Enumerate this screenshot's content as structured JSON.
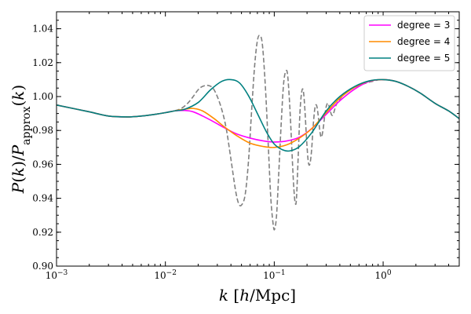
{
  "chart_data": {
    "type": "line",
    "xscale": "log",
    "xlim": [
      0.001,
      5.0
    ],
    "ylim": [
      0.9,
      1.05
    ],
    "xlabel": "k [h/Mpc]",
    "ylabel": "P(k)/P_approx(k)",
    "xticks": [
      {
        "value": 0.001,
        "base": "10",
        "exp": "−3"
      },
      {
        "value": 0.01,
        "base": "10",
        "exp": "−2"
      },
      {
        "value": 0.1,
        "base": "10",
        "exp": "−1"
      },
      {
        "value": 1.0,
        "base": "10",
        "exp": "0"
      }
    ],
    "yticks": [
      {
        "value": 0.9,
        "label": "0.90"
      },
      {
        "value": 0.92,
        "label": "0.92"
      },
      {
        "value": 0.94,
        "label": "0.94"
      },
      {
        "value": 0.96,
        "label": "0.96"
      },
      {
        "value": 0.98,
        "label": "0.98"
      },
      {
        "value": 1.0,
        "label": "1.00"
      },
      {
        "value": 1.02,
        "label": "1.02"
      },
      {
        "value": 1.04,
        "label": "1.04"
      }
    ],
    "legend_position": "top-right",
    "series": [
      {
        "name": "data",
        "label": "",
        "color": "#808080",
        "dashed": true,
        "points": [
          [
            0.001,
            0.995
          ],
          [
            0.002,
            0.991
          ],
          [
            0.003,
            0.9885
          ],
          [
            0.0045,
            0.988
          ],
          [
            0.006,
            0.9885
          ],
          [
            0.008,
            0.9895
          ],
          [
            0.01,
            0.9905
          ],
          [
            0.012,
            0.9915
          ],
          [
            0.014,
            0.993
          ],
          [
            0.016,
            0.996
          ],
          [
            0.018,
            1.0
          ],
          [
            0.02,
            1.004
          ],
          [
            0.022,
            1.006
          ],
          [
            0.025,
            1.0065
          ],
          [
            0.028,
            1.004
          ],
          [
            0.032,
            0.995
          ],
          [
            0.036,
            0.982
          ],
          [
            0.04,
            0.963
          ],
          [
            0.044,
            0.945
          ],
          [
            0.047,
            0.937
          ],
          [
            0.05,
            0.936
          ],
          [
            0.054,
            0.942
          ],
          [
            0.058,
            0.962
          ],
          [
            0.062,
            0.992
          ],
          [
            0.066,
            1.018
          ],
          [
            0.07,
            1.033
          ],
          [
            0.074,
            1.036
          ],
          [
            0.078,
            1.03
          ],
          [
            0.083,
            1.005
          ],
          [
            0.088,
            0.972
          ],
          [
            0.093,
            0.94
          ],
          [
            0.098,
            0.924
          ],
          [
            0.101,
            0.922
          ],
          [
            0.105,
            0.93
          ],
          [
            0.11,
            0.955
          ],
          [
            0.116,
            0.985
          ],
          [
            0.122,
            1.008
          ],
          [
            0.128,
            1.015
          ],
          [
            0.133,
            1.012
          ],
          [
            0.14,
            0.99
          ],
          [
            0.148,
            0.957
          ],
          [
            0.152,
            0.944
          ],
          [
            0.156,
            0.937
          ],
          [
            0.16,
            0.94
          ],
          [
            0.166,
            0.965
          ],
          [
            0.172,
            0.99
          ],
          [
            0.178,
            1.002
          ],
          [
            0.184,
            1.004
          ],
          [
            0.19,
            0.995
          ],
          [
            0.198,
            0.975
          ],
          [
            0.205,
            0.962
          ],
          [
            0.212,
            0.96
          ],
          [
            0.22,
            0.968
          ],
          [
            0.228,
            0.983
          ],
          [
            0.236,
            0.993
          ],
          [
            0.244,
            0.995
          ],
          [
            0.252,
            0.99
          ],
          [
            0.262,
            0.98
          ],
          [
            0.27,
            0.976
          ],
          [
            0.28,
            0.98
          ],
          [
            0.29,
            0.988
          ],
          [
            0.3,
            0.994
          ],
          [
            0.312,
            0.996
          ],
          [
            0.325,
            0.992
          ],
          [
            0.338,
            0.989
          ],
          [
            0.35,
            0.99
          ],
          [
            0.37,
            0.995
          ],
          [
            0.4,
            0.9985
          ],
          [
            0.45,
            1.002
          ],
          [
            0.5,
            1.004
          ],
          [
            0.6,
            1.0065
          ],
          [
            0.7,
            1.008
          ],
          [
            0.8,
            1.009
          ],
          [
            0.9,
            1.0098
          ],
          [
            1.0,
            1.01
          ],
          [
            1.3,
            1.009
          ],
          [
            1.7,
            1.006
          ],
          [
            2.2,
            1.002
          ],
          [
            3.0,
            0.996
          ],
          [
            4.0,
            0.9915
          ],
          [
            5.0,
            0.987
          ]
        ]
      },
      {
        "name": "degree3",
        "label": "degree = 3",
        "color": "#ff00ff",
        "dashed": false,
        "points": [
          [
            0.001,
            0.995
          ],
          [
            0.002,
            0.991
          ],
          [
            0.003,
            0.9885
          ],
          [
            0.0045,
            0.988
          ],
          [
            0.006,
            0.9885
          ],
          [
            0.008,
            0.9895
          ],
          [
            0.01,
            0.9905
          ],
          [
            0.012,
            0.9915
          ],
          [
            0.015,
            0.9918
          ],
          [
            0.018,
            0.991
          ],
          [
            0.022,
            0.9885
          ],
          [
            0.028,
            0.985
          ],
          [
            0.035,
            0.9815
          ],
          [
            0.045,
            0.978
          ],
          [
            0.06,
            0.9755
          ],
          [
            0.08,
            0.9738
          ],
          [
            0.1,
            0.9732
          ],
          [
            0.13,
            0.9738
          ],
          [
            0.17,
            0.976
          ],
          [
            0.22,
            0.981
          ],
          [
            0.3,
            0.9895
          ],
          [
            0.4,
            0.9975
          ],
          [
            0.55,
            1.0045
          ],
          [
            0.75,
            1.009
          ],
          [
            1.0,
            1.01
          ],
          [
            1.3,
            1.009
          ],
          [
            1.7,
            1.006
          ],
          [
            2.2,
            1.002
          ],
          [
            3.0,
            0.996
          ],
          [
            4.0,
            0.9915
          ],
          [
            5.0,
            0.987
          ]
        ]
      },
      {
        "name": "degree4",
        "label": "degree = 4",
        "color": "#ff8c00",
        "dashed": false,
        "points": [
          [
            0.001,
            0.995
          ],
          [
            0.002,
            0.991
          ],
          [
            0.003,
            0.9885
          ],
          [
            0.0045,
            0.988
          ],
          [
            0.006,
            0.9885
          ],
          [
            0.008,
            0.9895
          ],
          [
            0.01,
            0.9905
          ],
          [
            0.012,
            0.9915
          ],
          [
            0.015,
            0.9925
          ],
          [
            0.018,
            0.993
          ],
          [
            0.022,
            0.9915
          ],
          [
            0.028,
            0.987
          ],
          [
            0.035,
            0.982
          ],
          [
            0.045,
            0.977
          ],
          [
            0.06,
            0.9725
          ],
          [
            0.08,
            0.9705
          ],
          [
            0.1,
            0.97
          ],
          [
            0.13,
            0.9715
          ],
          [
            0.17,
            0.9755
          ],
          [
            0.22,
            0.981
          ],
          [
            0.3,
            0.9905
          ],
          [
            0.4,
            0.999
          ],
          [
            0.55,
            1.0055
          ],
          [
            0.75,
            1.0092
          ],
          [
            1.0,
            1.01
          ],
          [
            1.3,
            1.009
          ],
          [
            1.7,
            1.006
          ],
          [
            2.2,
            1.002
          ],
          [
            3.0,
            0.996
          ],
          [
            4.0,
            0.9915
          ],
          [
            5.0,
            0.987
          ]
        ]
      },
      {
        "name": "degree5",
        "label": "degree = 5",
        "color": "#008080",
        "dashed": false,
        "points": [
          [
            0.001,
            0.995
          ],
          [
            0.002,
            0.991
          ],
          [
            0.003,
            0.9885
          ],
          [
            0.0045,
            0.988
          ],
          [
            0.006,
            0.9885
          ],
          [
            0.008,
            0.9895
          ],
          [
            0.01,
            0.9905
          ],
          [
            0.012,
            0.9915
          ],
          [
            0.015,
            0.9925
          ],
          [
            0.02,
            0.9965
          ],
          [
            0.026,
            1.004
          ],
          [
            0.033,
            1.009
          ],
          [
            0.04,
            1.01
          ],
          [
            0.048,
            1.008
          ],
          [
            0.058,
            1.0005
          ],
          [
            0.07,
            0.99
          ],
          [
            0.085,
            0.979
          ],
          [
            0.1,
            0.972
          ],
          [
            0.12,
            0.9685
          ],
          [
            0.14,
            0.968
          ],
          [
            0.17,
            0.9705
          ],
          [
            0.22,
            0.9785
          ],
          [
            0.3,
            0.9915
          ],
          [
            0.4,
            1.0
          ],
          [
            0.55,
            1.006
          ],
          [
            0.75,
            1.0093
          ],
          [
            1.0,
            1.01
          ],
          [
            1.3,
            1.009
          ],
          [
            1.7,
            1.006
          ],
          [
            2.2,
            1.002
          ],
          [
            3.0,
            0.996
          ],
          [
            4.0,
            0.9915
          ],
          [
            5.0,
            0.987
          ]
        ]
      }
    ]
  }
}
